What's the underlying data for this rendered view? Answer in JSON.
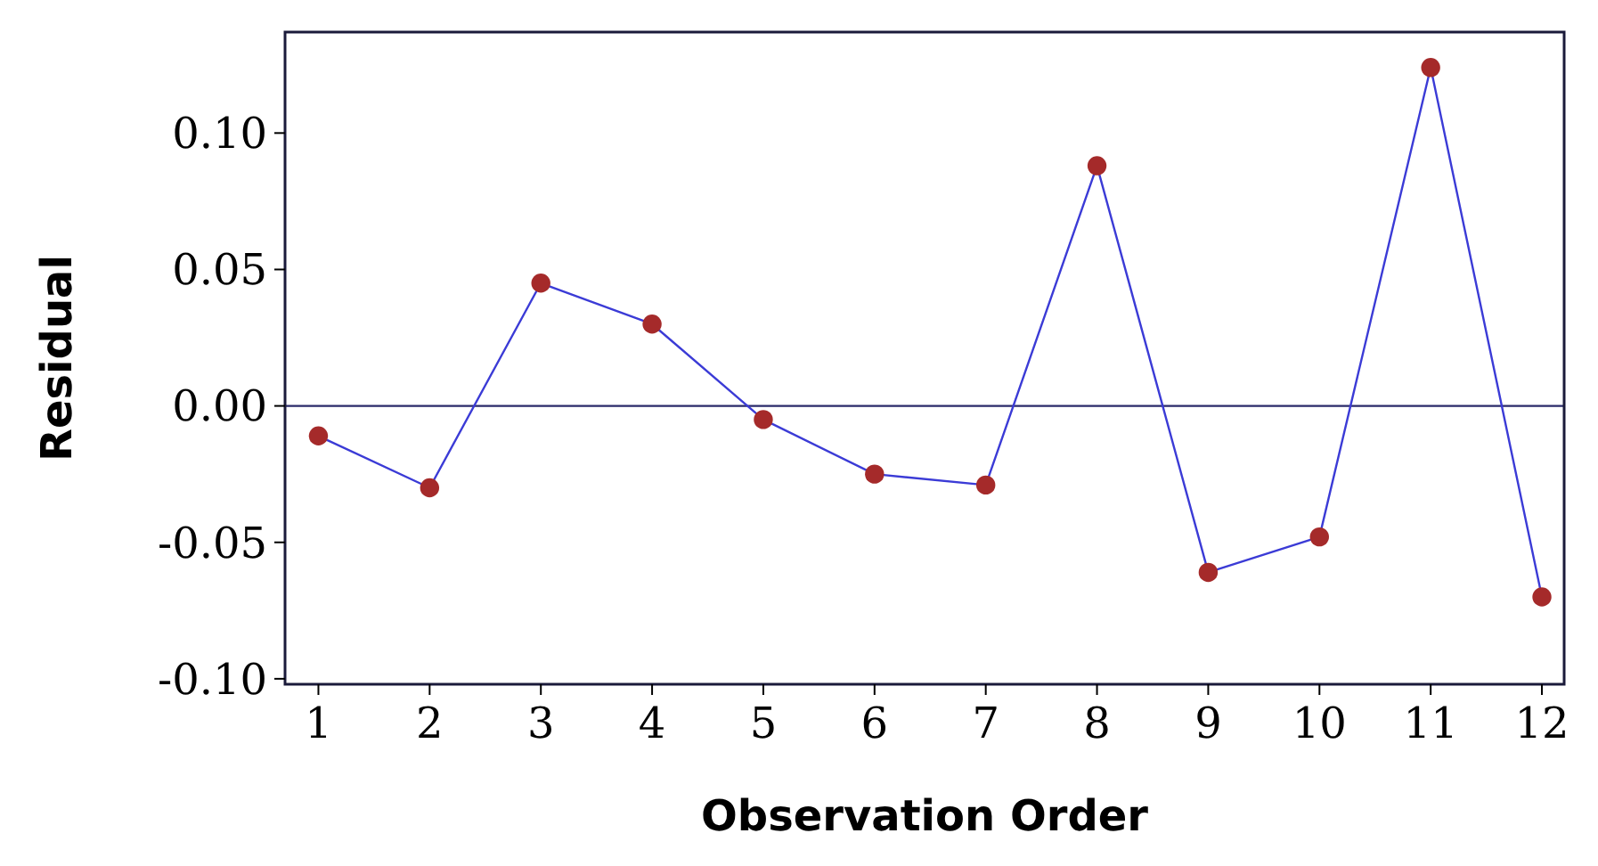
{
  "chart_data": {
    "type": "line",
    "xlabel": "Observation Order",
    "ylabel": "Residual",
    "x": [
      1,
      2,
      3,
      4,
      5,
      6,
      7,
      8,
      9,
      10,
      11,
      12
    ],
    "series": [
      {
        "color": "#3b3bd6",
        "values": [
          -0.011,
          -0.03,
          0.045,
          0.03,
          -0.005,
          -0.025,
          -0.029,
          0.088,
          -0.061,
          -0.048,
          0.124,
          -0.07
        ]
      }
    ],
    "marker": "circle",
    "xlim": [
      0.7,
      12.2
    ],
    "xticks": [
      1,
      2,
      3,
      4,
      5,
      6,
      7,
      8,
      9,
      10,
      11,
      12
    ],
    "ylim": [
      -0.102,
      0.137
    ],
    "yticks": [
      {
        "value": -0.1,
        "label": "-0.10"
      },
      {
        "value": -0.05,
        "label": "-0.05"
      },
      {
        "value": 0,
        "label": "0.00"
      },
      {
        "value": 0.05,
        "label": "0.05"
      },
      {
        "value": 0.1,
        "label": "0.10"
      }
    ],
    "ref_lines": [
      {
        "axis": "y",
        "value": 0,
        "color": "#2a2a6a"
      }
    ],
    "grid": false
  }
}
